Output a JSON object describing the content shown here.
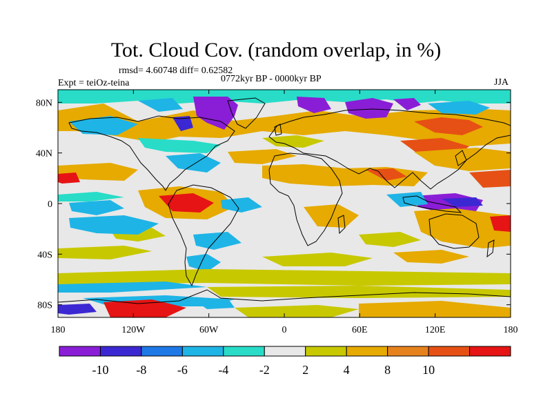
{
  "title": "Tot. Cloud Cov. (random overlap, in %)",
  "stats": "rmsd= 4.60748 diff= 0.62582",
  "period": "0772kyr BP - 0000kyr BP",
  "experiment": "Expt = teiOz-teina",
  "season": "JJA",
  "map": {
    "lon_range": [
      -180,
      180
    ],
    "lat_range": [
      -90,
      90
    ],
    "x_ticks": [
      {
        "lon": -180,
        "label": "180"
      },
      {
        "lon": -120,
        "label": "120W"
      },
      {
        "lon": -60,
        "label": "60W"
      },
      {
        "lon": 0,
        "label": "0"
      },
      {
        "lon": 60,
        "label": "60E"
      },
      {
        "lon": 120,
        "label": "120E"
      },
      {
        "lon": 180,
        "label": "180"
      }
    ],
    "y_ticks": [
      {
        "lat": 80,
        "label": "80N"
      },
      {
        "lat": 40,
        "label": "40N"
      },
      {
        "lat": 0,
        "label": "0"
      },
      {
        "lat": -40,
        "label": "40S"
      },
      {
        "lat": -80,
        "label": "80S"
      }
    ],
    "background_color": "#e8e8e8"
  },
  "colorbar": {
    "colors": [
      "#8a1ed6",
      "#3c28d2",
      "#1e78e6",
      "#1eb4e6",
      "#28dcc8",
      "#e8e8e8",
      "#c8c800",
      "#e6aa00",
      "#e6821e",
      "#e65014",
      "#e61414"
    ],
    "labels": [
      "-10",
      "-8",
      "-6",
      "-4",
      "-2",
      "2",
      "4",
      "8",
      "10"
    ]
  }
}
